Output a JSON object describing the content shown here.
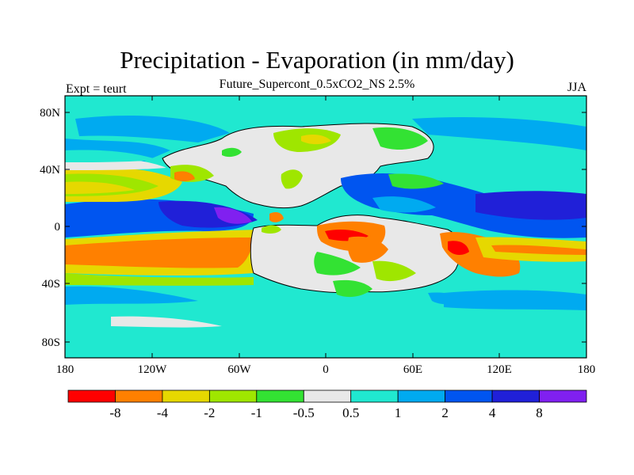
{
  "title": "Precipitation - Evaporation (in mm/day)",
  "subtitle": "Future_Supercont_0.5xCO2_NS 2.5%",
  "left_string": "Expt = teurt",
  "right_string": "JJA",
  "map": {
    "y_ticks": [
      "80N",
      "40N",
      "0",
      "40S",
      "80S"
    ],
    "x_ticks": [
      "180",
      "120W",
      "60W",
      "0",
      "60E",
      "120E",
      "180"
    ]
  },
  "colorbar": {
    "labels": [
      "-8",
      "-4",
      "-2",
      "-1",
      "-0.5",
      "0.5",
      "1",
      "2",
      "4",
      "8"
    ],
    "colors": [
      "#ff0000",
      "#ff8000",
      "#e6d800",
      "#9fe600",
      "#33e233",
      "#e8e8e8",
      "#20e8d0",
      "#00aaf0",
      "#0055f0",
      "#2020d8",
      "#8020f0"
    ]
  }
}
